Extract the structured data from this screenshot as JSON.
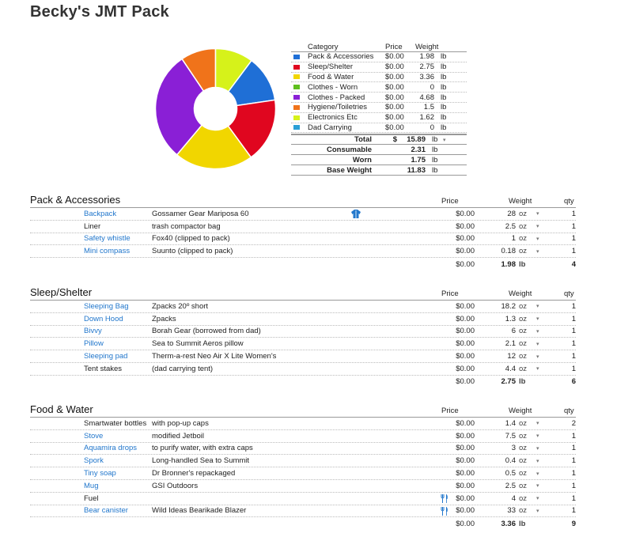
{
  "title": "Becky's JMT Pack",
  "summary": {
    "headers": {
      "category": "Category",
      "price": "Price",
      "weight": "Weight"
    },
    "rows": [
      {
        "color": "#1f6fd6",
        "category": "Pack & Accessories",
        "price": "$0.00",
        "weight": "1.98",
        "unit": "lb"
      },
      {
        "color": "#e0061f",
        "category": "Sleep/Shelter",
        "price": "$0.00",
        "weight": "2.75",
        "unit": "lb"
      },
      {
        "color": "#f1d600",
        "category": "Food & Water",
        "price": "$0.00",
        "weight": "3.36",
        "unit": "lb"
      },
      {
        "color": "#5fbf1e",
        "category": "Clothes - Worn",
        "price": "$0.00",
        "weight": "0",
        "unit": "lb"
      },
      {
        "color": "#8a1fd6",
        "category": "Clothes - Packed",
        "price": "$0.00",
        "weight": "4.68",
        "unit": "lb"
      },
      {
        "color": "#f0731a",
        "category": "Hygiene/Toiletries",
        "price": "$0.00",
        "weight": "1.5",
        "unit": "lb"
      },
      {
        "color": "#d6f21a",
        "category": "Electronics Etc",
        "price": "$0.00",
        "weight": "1.62",
        "unit": "lb"
      },
      {
        "color": "#2a9fd6",
        "category": "Dad Carrying",
        "price": "$0.00",
        "weight": "0",
        "unit": "lb"
      }
    ],
    "totals": [
      {
        "label": "Total",
        "currency": "$",
        "value": "15.89",
        "unit": "lb",
        "arrow": "▾"
      },
      {
        "label": "Consumable",
        "currency": "",
        "value": "2.31",
        "unit": "lb",
        "arrow": ""
      },
      {
        "label": "Worn",
        "currency": "",
        "value": "1.75",
        "unit": "lb",
        "arrow": ""
      },
      {
        "label": "Base Weight",
        "currency": "",
        "value": "11.83",
        "unit": "lb",
        "arrow": ""
      }
    ]
  },
  "chart_data": {
    "type": "pie",
    "donut": true,
    "categories": [
      "Pack & Accessories",
      "Sleep/Shelter",
      "Food & Water",
      "Clothes - Worn",
      "Clothes - Packed",
      "Hygiene/Toiletries",
      "Electronics Etc",
      "Dad Carrying"
    ],
    "values": [
      1.98,
      2.75,
      3.36,
      0,
      4.68,
      1.5,
      1.62,
      0
    ],
    "colors": [
      "#1f6fd6",
      "#e0061f",
      "#f1d600",
      "#5fbf1e",
      "#8a1fd6",
      "#f0731a",
      "#d6f21a",
      "#2a9fd6"
    ]
  },
  "columns": {
    "price": "Price",
    "weight": "Weight",
    "qty": "qty"
  },
  "dropdown_glyph": "▾",
  "sections": [
    {
      "title": "Pack & Accessories",
      "items": [
        {
          "name": "Backpack",
          "link": true,
          "desc": "Gossamer Gear Mariposa 60",
          "icon": "jacket",
          "price": "$0.00",
          "weight": "28",
          "unit": "oz",
          "qty": "1"
        },
        {
          "name": "Liner",
          "link": false,
          "desc": "trash compactor bag",
          "icon": "",
          "price": "$0.00",
          "weight": "2.5",
          "unit": "oz",
          "qty": "1"
        },
        {
          "name": "Safety whistle",
          "link": true,
          "desc": "Fox40 (clipped to pack)",
          "icon": "",
          "price": "$0.00",
          "weight": "1",
          "unit": "oz",
          "qty": "1"
        },
        {
          "name": "Mini compass",
          "link": true,
          "desc": "Suunto (clipped to pack)",
          "icon": "",
          "price": "$0.00",
          "weight": "0.18",
          "unit": "oz",
          "qty": "1"
        }
      ],
      "total": {
        "price": "$0.00",
        "weight": "1.98",
        "unit": "lb",
        "qty": "4"
      }
    },
    {
      "title": "Sleep/Shelter",
      "items": [
        {
          "name": "Sleeping Bag",
          "link": true,
          "desc": "Zpacks 20º short",
          "icon": "",
          "price": "$0.00",
          "weight": "18.2",
          "unit": "oz",
          "qty": "1"
        },
        {
          "name": "Down Hood",
          "link": true,
          "desc": "Zpacks",
          "icon": "",
          "price": "$0.00",
          "weight": "1.3",
          "unit": "oz",
          "qty": "1"
        },
        {
          "name": "Bivvy",
          "link": true,
          "desc": "Borah Gear (borrowed from dad)",
          "icon": "",
          "price": "$0.00",
          "weight": "6",
          "unit": "oz",
          "qty": "1"
        },
        {
          "name": "Pillow",
          "link": true,
          "desc": "Sea to Summit Aeros pillow",
          "icon": "",
          "price": "$0.00",
          "weight": "2.1",
          "unit": "oz",
          "qty": "1"
        },
        {
          "name": "Sleeping pad",
          "link": true,
          "desc": "Therm-a-rest Neo Air X Lite Women's",
          "icon": "",
          "price": "$0.00",
          "weight": "12",
          "unit": "oz",
          "qty": "1"
        },
        {
          "name": "Tent stakes",
          "link": false,
          "desc": "(dad carrying tent)",
          "icon": "",
          "price": "$0.00",
          "weight": "4.4",
          "unit": "oz",
          "qty": "1"
        }
      ],
      "total": {
        "price": "$0.00",
        "weight": "2.75",
        "unit": "lb",
        "qty": "6"
      }
    },
    {
      "title": "Food & Water",
      "items": [
        {
          "name": "Smartwater bottles",
          "link": false,
          "desc": "with pop-up caps",
          "icon": "",
          "price": "$0.00",
          "weight": "1.4",
          "unit": "oz",
          "qty": "2"
        },
        {
          "name": "Stove",
          "link": true,
          "desc": "modified Jetboil",
          "icon": "",
          "price": "$0.00",
          "weight": "7.5",
          "unit": "oz",
          "qty": "1"
        },
        {
          "name": "Aquamira drops",
          "link": true,
          "desc": "to purify water, with extra caps",
          "icon": "",
          "price": "$0.00",
          "weight": "3",
          "unit": "oz",
          "qty": "1"
        },
        {
          "name": "Spork",
          "link": true,
          "desc": "Long-handled Sea to Summit",
          "icon": "",
          "price": "$0.00",
          "weight": "0.4",
          "unit": "oz",
          "qty": "1"
        },
        {
          "name": "Tiny soap",
          "link": true,
          "desc": "Dr Bronner's repackaged",
          "icon": "",
          "price": "$0.00",
          "weight": "0.5",
          "unit": "oz",
          "qty": "1"
        },
        {
          "name": "Mug",
          "link": true,
          "desc": "GSI Outdoors",
          "icon": "",
          "price": "$0.00",
          "weight": "2.5",
          "unit": "oz",
          "qty": "1"
        },
        {
          "name": "Fuel",
          "link": false,
          "desc": "",
          "icon": "fork",
          "price": "$0.00",
          "weight": "4",
          "unit": "oz",
          "qty": "1"
        },
        {
          "name": "Bear canister",
          "link": true,
          "desc": "Wild Ideas Bearikade Blazer",
          "icon": "fork",
          "price": "$0.00",
          "weight": "33",
          "unit": "oz",
          "qty": "1"
        }
      ],
      "total": {
        "price": "$0.00",
        "weight": "3.36",
        "unit": "lb",
        "qty": "9"
      }
    }
  ]
}
